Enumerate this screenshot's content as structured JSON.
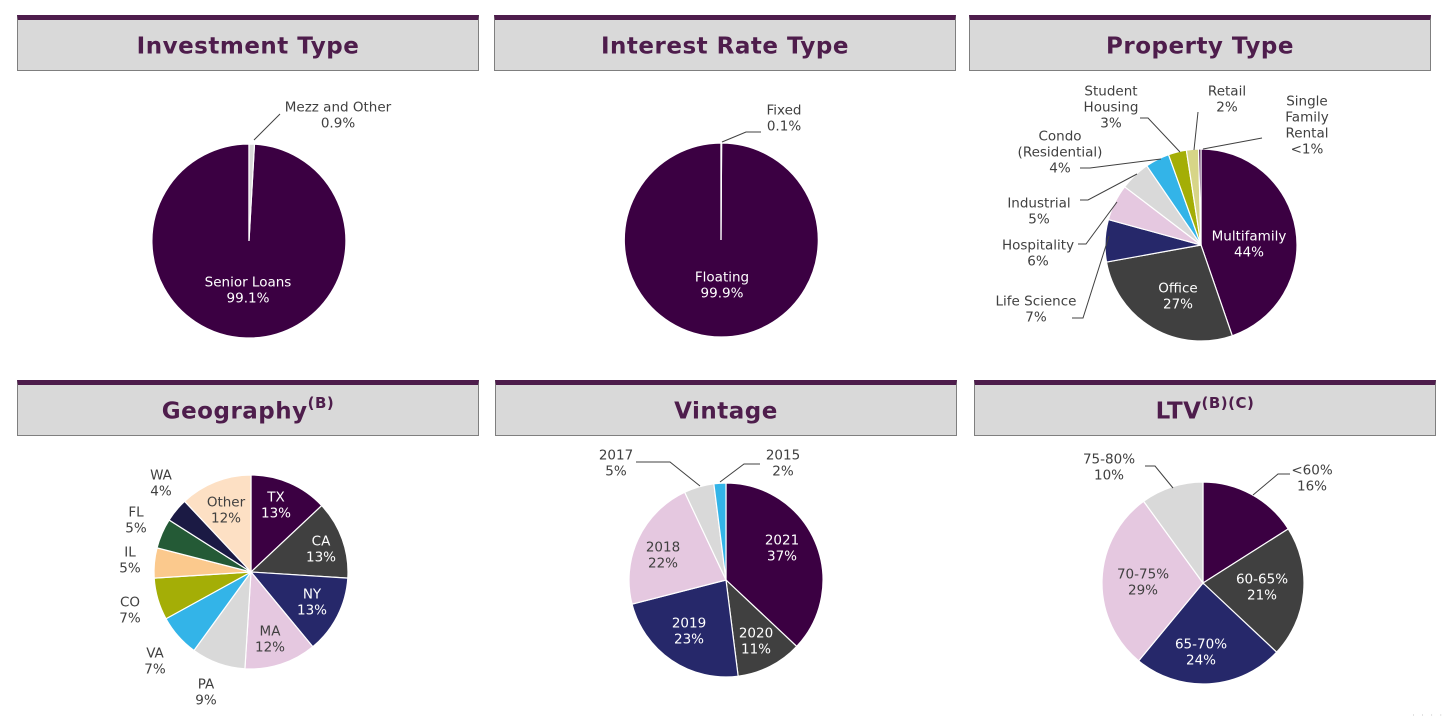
{
  "panels": [
    {
      "title": "Investment Type",
      "sup": ""
    },
    {
      "title": "Interest Rate Type",
      "sup": ""
    },
    {
      "title": "Property Type",
      "sup": ""
    },
    {
      "title": "Geography",
      "sup": "(B)"
    },
    {
      "title": "Vintage",
      "sup": ""
    },
    {
      "title": "LTV",
      "sup": "(B)(C)"
    }
  ],
  "colors": {
    "header_bar": "#4e1d4c",
    "header_bg": "#d9d9d9",
    "title_text": "#4e1d4c",
    "dark_purple": "#3b0042",
    "charcoal": "#404040",
    "navy": "#26286a",
    "light_pink": "#e5c8e0",
    "light_gray": "#d9d9d9",
    "sky_blue": "#33b4e8",
    "olive": "#a4ae06",
    "khaki": "#d7d587",
    "peach": "#fbc98d",
    "dark_green": "#245a36",
    "midnight": "#1b1a44",
    "pale_peach": "#fde0c4"
  },
  "chart_data": [
    {
      "type": "pie",
      "title": "Investment Type",
      "slices": [
        {
          "label": "Senior Loans",
          "value": 99.1,
          "display": "99.1%",
          "color": "#3b0042"
        },
        {
          "label": "Mezz and Other",
          "value": 0.9,
          "display": "0.9%",
          "color": "#d9d9d9"
        }
      ]
    },
    {
      "type": "pie",
      "title": "Interest Rate Type",
      "slices": [
        {
          "label": "Floating",
          "value": 99.9,
          "display": "99.9%",
          "color": "#3b0042"
        },
        {
          "label": "Fixed",
          "value": 0.1,
          "display": "0.1%",
          "color": "#d9d9d9"
        }
      ]
    },
    {
      "type": "pie",
      "title": "Property Type",
      "slices": [
        {
          "label": "Multifamily",
          "value": 44,
          "display": "44%",
          "color": "#3b0042"
        },
        {
          "label": "Office",
          "value": 27,
          "display": "27%",
          "color": "#404040"
        },
        {
          "label": "Life Science",
          "value": 7,
          "display": "7%",
          "color": "#26286a"
        },
        {
          "label": "Hospitality",
          "value": 6,
          "display": "6%",
          "color": "#e5c8e0"
        },
        {
          "label": "Industrial",
          "value": 5,
          "display": "5%",
          "color": "#d9d9d9"
        },
        {
          "label": "Condo (Residential)",
          "value": 4,
          "display": "4%",
          "color": "#33b4e8"
        },
        {
          "label": "Student Housing",
          "value": 3,
          "display": "3%",
          "color": "#a4ae06"
        },
        {
          "label": "Retail",
          "value": 2,
          "display": "2%",
          "color": "#d7d587"
        },
        {
          "label": "Single Family Rental",
          "value": 0.4,
          "display": "<1%",
          "color": "#3b0042"
        }
      ]
    },
    {
      "type": "pie",
      "title": "Geography",
      "slices": [
        {
          "label": "TX",
          "value": 13,
          "display": "13%",
          "color": "#3b0042"
        },
        {
          "label": "CA",
          "value": 13,
          "display": "13%",
          "color": "#404040"
        },
        {
          "label": "NY",
          "value": 13,
          "display": "13%",
          "color": "#26286a"
        },
        {
          "label": "MA",
          "value": 12,
          "display": "12%",
          "color": "#e5c8e0"
        },
        {
          "label": "PA",
          "value": 9,
          "display": "9%",
          "color": "#d9d9d9"
        },
        {
          "label": "VA",
          "value": 7,
          "display": "7%",
          "color": "#33b4e8"
        },
        {
          "label": "CO",
          "value": 7,
          "display": "7%",
          "color": "#a4ae06"
        },
        {
          "label": "IL",
          "value": 5,
          "display": "5%",
          "color": "#fbc98d"
        },
        {
          "label": "FL",
          "value": 5,
          "display": "5%",
          "color": "#245a36"
        },
        {
          "label": "WA",
          "value": 4,
          "display": "4%",
          "color": "#1b1a44"
        },
        {
          "label": "Other",
          "value": 12,
          "display": "12%",
          "color": "#fde0c4"
        }
      ]
    },
    {
      "type": "pie",
      "title": "Vintage",
      "slices": [
        {
          "label": "2021",
          "value": 37,
          "display": "37%",
          "color": "#3b0042"
        },
        {
          "label": "2020",
          "value": 11,
          "display": "11%",
          "color": "#404040"
        },
        {
          "label": "2019",
          "value": 23,
          "display": "23%",
          "color": "#26286a"
        },
        {
          "label": "2018",
          "value": 22,
          "display": "22%",
          "color": "#e5c8e0"
        },
        {
          "label": "2017",
          "value": 5,
          "display": "5%",
          "color": "#d9d9d9"
        },
        {
          "label": "2015",
          "value": 2,
          "display": "2%",
          "color": "#33b4e8"
        }
      ]
    },
    {
      "type": "pie",
      "title": "LTV",
      "slices": [
        {
          "label": "<60%",
          "value": 16,
          "display": "16%",
          "color": "#3b0042"
        },
        {
          "label": "60-65%",
          "value": 21,
          "display": "21%",
          "color": "#404040"
        },
        {
          "label": "65-70%",
          "value": 24,
          "display": "24%",
          "color": "#26286a"
        },
        {
          "label": "70-75%",
          "value": 29,
          "display": "29%",
          "color": "#e5c8e0"
        },
        {
          "label": "75-80%",
          "value": 10,
          "display": "10%",
          "color": "#d9d9d9"
        }
      ]
    }
  ]
}
